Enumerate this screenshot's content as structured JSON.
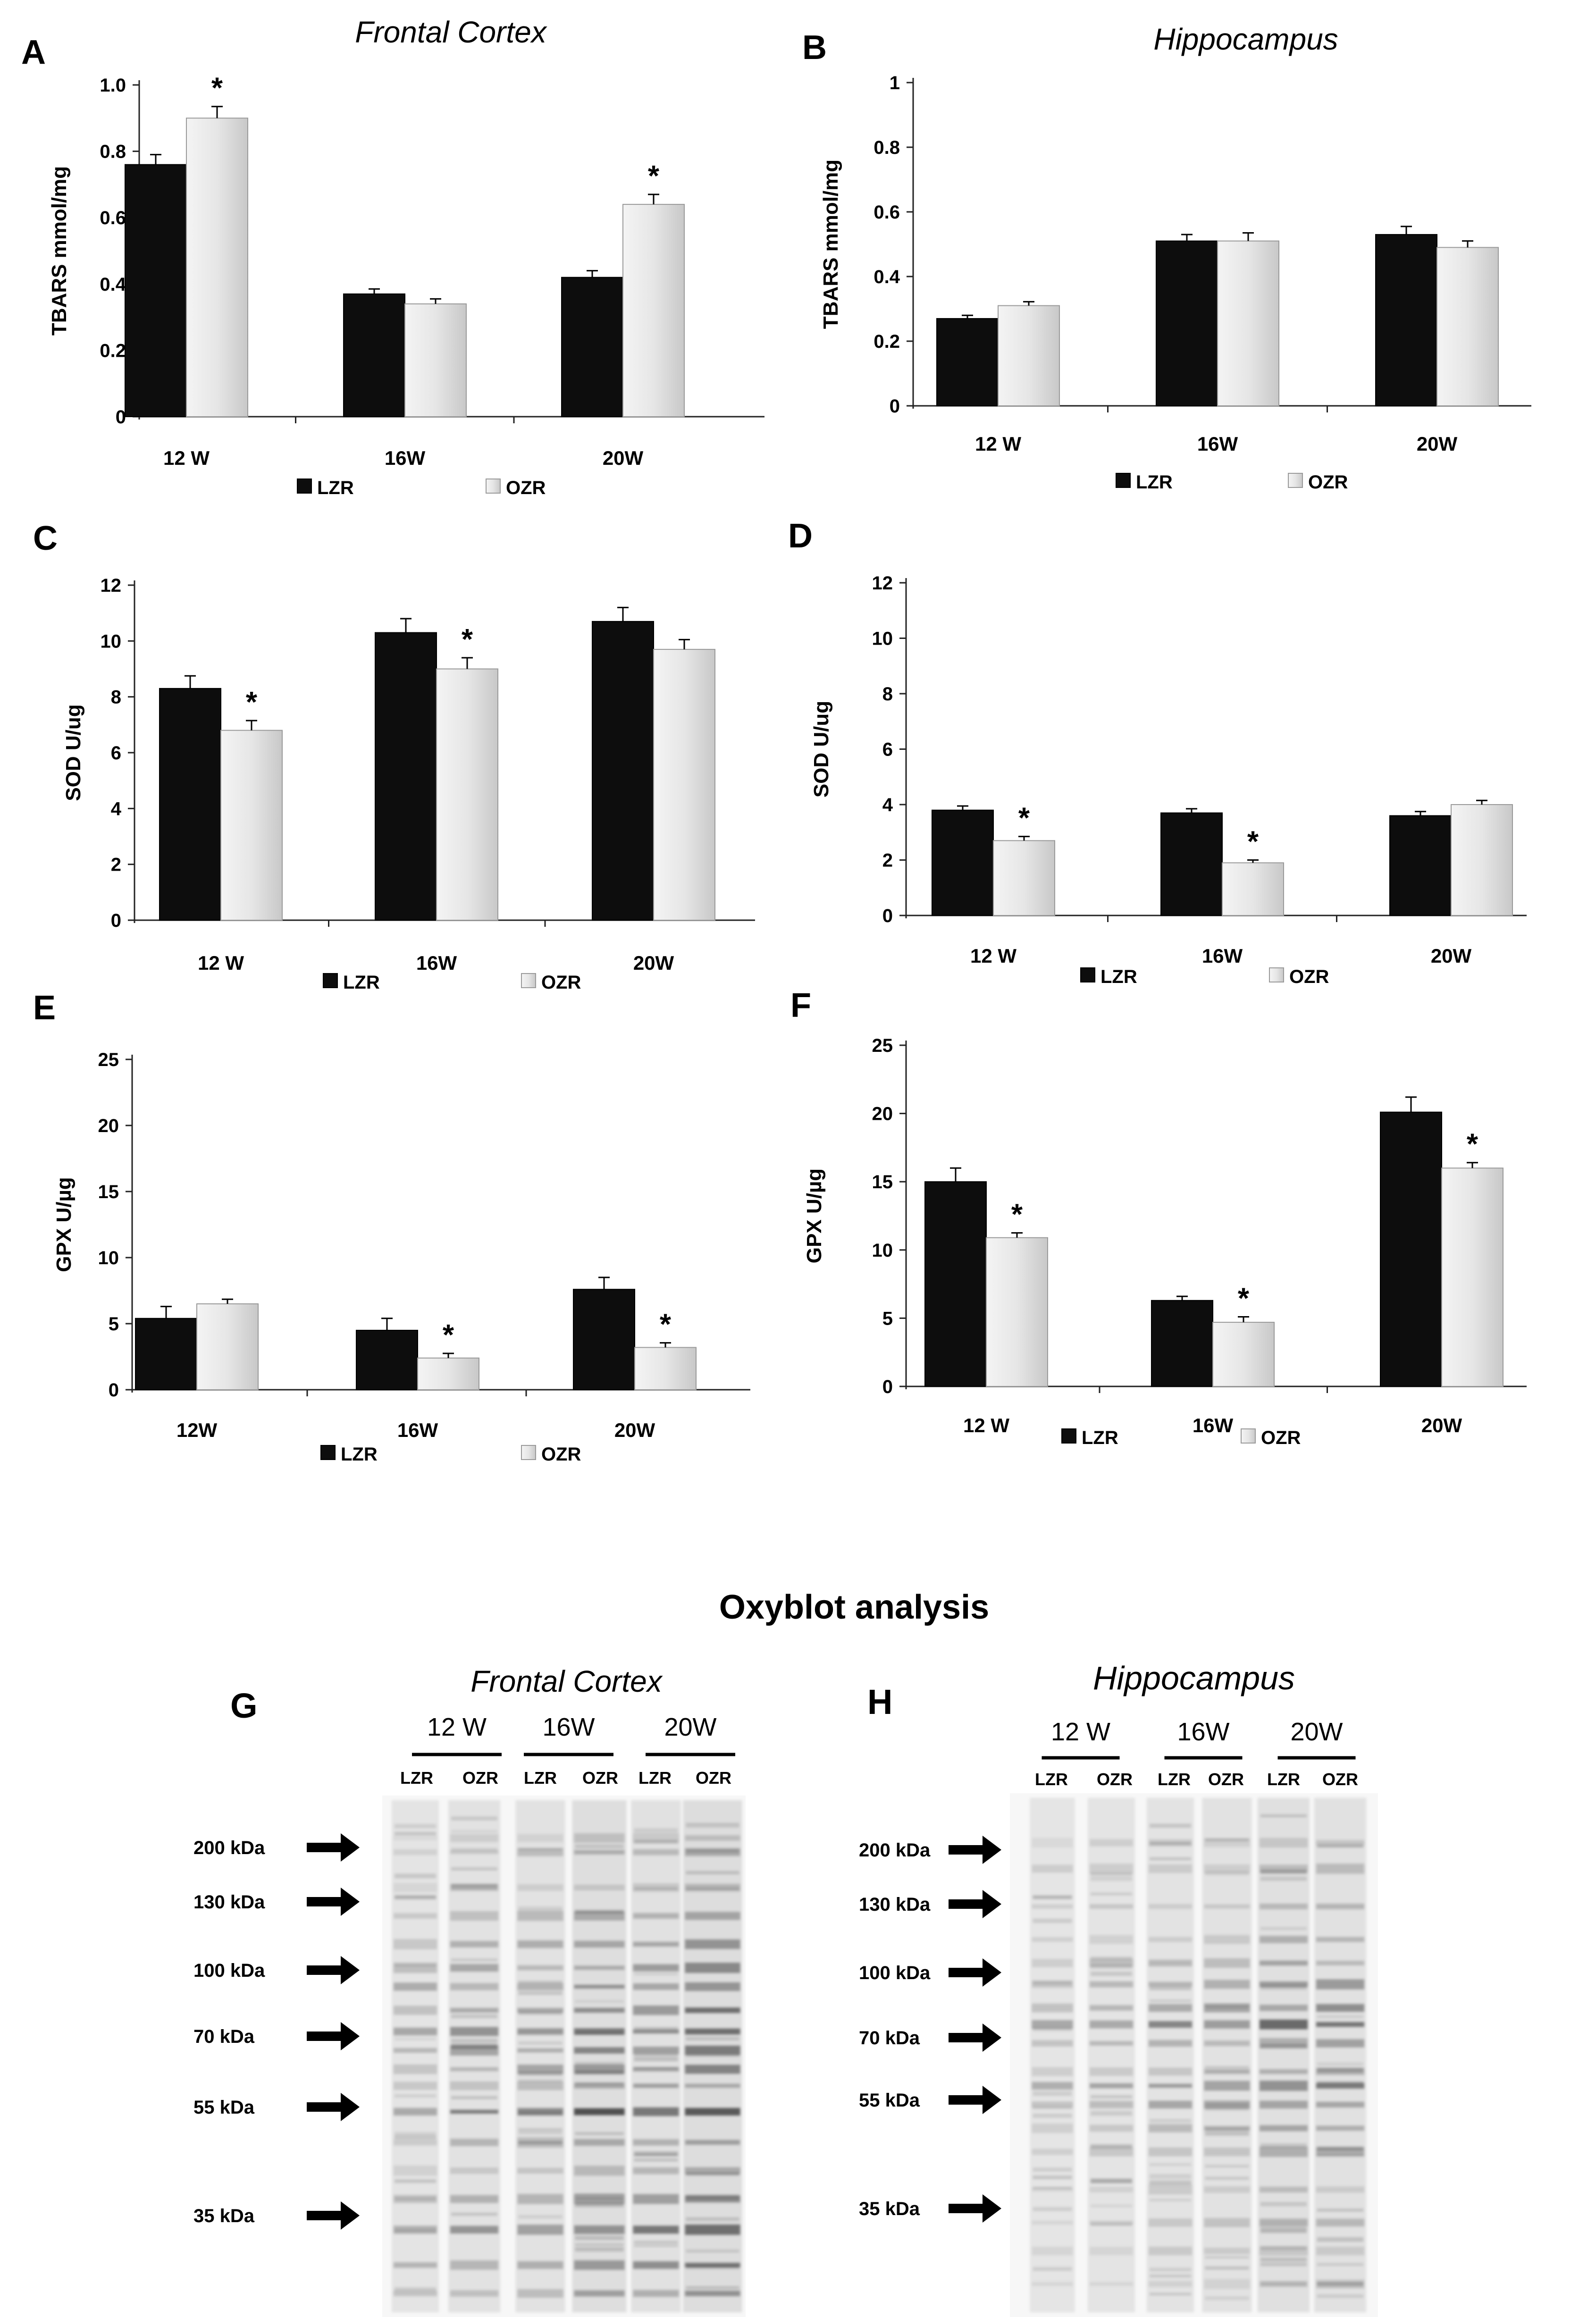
{
  "colors": {
    "lzr": "#0d0d0d",
    "ozr": "#e3e3e3",
    "ozr_edge": "#9a9a9a",
    "axis": "#222222",
    "arrow": "#000000"
  },
  "chart_data": [
    {
      "panel": "A",
      "type": "bar",
      "title": "Frontal Cortex",
      "ylabel": "TBARS mmol/mg",
      "categories": [
        "12 W",
        "16W",
        "20W"
      ],
      "ylim": [
        0,
        1.0
      ],
      "yticks": [
        "0",
        "0.2",
        "0.4",
        "0.6",
        "0.8",
        "1.0"
      ],
      "ytick_values": [
        0,
        0.2,
        0.4,
        0.6,
        0.8,
        1.0
      ],
      "series": [
        {
          "name": "LZR",
          "values": [
            0.76,
            0.37,
            0.42
          ],
          "errors": [
            0.03,
            0.015,
            0.02
          ]
        },
        {
          "name": "OZR",
          "values": [
            0.9,
            0.34,
            0.64
          ],
          "errors": [
            0.035,
            0.015,
            0.03
          ]
        }
      ],
      "significance": [
        {
          "series": 1,
          "index": 0,
          "mark": "*"
        },
        {
          "series": 1,
          "index": 2,
          "mark": "*"
        }
      ],
      "legend": [
        "LZR",
        "OZR"
      ]
    },
    {
      "panel": "B",
      "type": "bar",
      "title": "Hippocampus",
      "ylabel": "TBARS mmol/mg",
      "categories": [
        "12 W",
        "16W",
        "20W"
      ],
      "ylim": [
        0,
        1
      ],
      "yticks": [
        "0",
        "0.2",
        "0.4",
        "0.6",
        "0.8",
        "1"
      ],
      "ytick_values": [
        0,
        0.2,
        0.4,
        0.6,
        0.8,
        1
      ],
      "series": [
        {
          "name": "LZR",
          "values": [
            0.27,
            0.51,
            0.53
          ],
          "errors": [
            0.01,
            0.02,
            0.025
          ]
        },
        {
          "name": "OZR",
          "values": [
            0.31,
            0.51,
            0.49
          ],
          "errors": [
            0.012,
            0.025,
            0.02
          ]
        }
      ],
      "significance": [],
      "legend": [
        "LZR",
        "OZR"
      ]
    },
    {
      "panel": "C",
      "type": "bar",
      "title": "",
      "ylabel": "SOD    U/ug",
      "categories": [
        "12 W",
        "16W",
        "20W"
      ],
      "ylim": [
        0,
        12
      ],
      "yticks": [
        "0",
        "2",
        "4",
        "6",
        "8",
        "10",
        "12"
      ],
      "ytick_values": [
        0,
        2,
        4,
        6,
        8,
        10,
        12
      ],
      "series": [
        {
          "name": "LZR",
          "values": [
            8.3,
            10.3,
            10.7
          ],
          "errors": [
            0.45,
            0.5,
            0.5
          ]
        },
        {
          "name": "OZR",
          "values": [
            6.8,
            9.0,
            9.7
          ],
          "errors": [
            0.35,
            0.4,
            0.35
          ]
        }
      ],
      "significance": [
        {
          "series": 1,
          "index": 0,
          "mark": "*"
        },
        {
          "series": 1,
          "index": 1,
          "mark": "*"
        }
      ],
      "legend": [
        "LZR",
        "OZR"
      ]
    },
    {
      "panel": "D",
      "type": "bar",
      "title": "",
      "ylabel": "SOD    U/ug",
      "categories": [
        "12 W",
        "16W",
        "20W"
      ],
      "ylim": [
        0,
        12
      ],
      "yticks": [
        "0",
        "2",
        "4",
        "6",
        "8",
        "10",
        "12"
      ],
      "ytick_values": [
        0,
        2,
        4,
        6,
        8,
        10,
        12
      ],
      "series": [
        {
          "name": "LZR",
          "values": [
            3.8,
            3.7,
            3.6
          ],
          "errors": [
            0.15,
            0.15,
            0.15
          ]
        },
        {
          "name": "OZR",
          "values": [
            2.7,
            1.9,
            4.0
          ],
          "errors": [
            0.15,
            0.1,
            0.15
          ]
        }
      ],
      "significance": [
        {
          "series": 1,
          "index": 0,
          "mark": "*"
        },
        {
          "series": 1,
          "index": 1,
          "mark": "*"
        }
      ],
      "legend": [
        "LZR",
        "OZR"
      ]
    },
    {
      "panel": "E",
      "type": "bar",
      "title": "",
      "ylabel": "GPX    U/µg",
      "categories": [
        "12W",
        "16W",
        "20W"
      ],
      "ylim": [
        0,
        25
      ],
      "yticks": [
        "0",
        "5",
        "10",
        "15",
        "20",
        "25"
      ],
      "ytick_values": [
        0,
        5,
        10,
        15,
        20,
        25
      ],
      "series": [
        {
          "name": "LZR",
          "values": [
            5.4,
            4.5,
            7.6
          ],
          "errors": [
            0.9,
            0.9,
            0.9
          ]
        },
        {
          "name": "OZR",
          "values": [
            6.5,
            2.4,
            3.2
          ],
          "errors": [
            0.35,
            0.35,
            0.35
          ]
        }
      ],
      "significance": [
        {
          "series": 1,
          "index": 1,
          "mark": "*"
        },
        {
          "series": 1,
          "index": 2,
          "mark": "*"
        }
      ],
      "legend": [
        "LZR",
        "OZR"
      ]
    },
    {
      "panel": "F",
      "type": "bar",
      "title": "",
      "ylabel": "GPX    U/µg",
      "categories": [
        "12 W",
        "16W",
        "20W"
      ],
      "ylim": [
        0,
        25
      ],
      "yticks": [
        "0",
        "5",
        "10",
        "15",
        "20",
        "25"
      ],
      "ytick_values": [
        0,
        5,
        10,
        15,
        20,
        25
      ],
      "series": [
        {
          "name": "LZR",
          "values": [
            15.0,
            6.3,
            20.1
          ],
          "errors": [
            1.0,
            0.3,
            1.1
          ]
        },
        {
          "name": "OZR",
          "values": [
            10.9,
            4.7,
            16.0
          ],
          "errors": [
            0.35,
            0.4,
            0.4
          ]
        }
      ],
      "significance": [
        {
          "series": 1,
          "index": 0,
          "mark": "*"
        },
        {
          "series": 1,
          "index": 1,
          "mark": "*"
        },
        {
          "series": 1,
          "index": 2,
          "mark": "*"
        }
      ],
      "legend": [
        "LZR",
        "OZR"
      ]
    }
  ],
  "oxyblot": {
    "heading": "Oxyblot analysis",
    "panels": [
      {
        "letter": "G",
        "title": "Frontal Cortex",
        "groups": [
          "12 W",
          "16W",
          "20W"
        ],
        "lanes": [
          "LZR",
          "OZR",
          "LZR",
          "OZR",
          "LZR",
          "OZR"
        ],
        "markers": [
          "200 kDa",
          "130 kDa",
          "100 kDa",
          "70 kDa",
          "55 kDa",
          "35 kDa"
        ]
      },
      {
        "letter": "H",
        "title": "Hippocampus",
        "groups": [
          "12 W",
          "16W",
          "20W"
        ],
        "lanes": [
          "LZR",
          "OZR",
          "LZR",
          "OZR",
          "LZR",
          "OZR"
        ],
        "markers": [
          "200 kDa",
          "130 kDa",
          "100 kDa",
          "70 kDa",
          "55 kDa",
          "35 kDa"
        ]
      }
    ]
  }
}
